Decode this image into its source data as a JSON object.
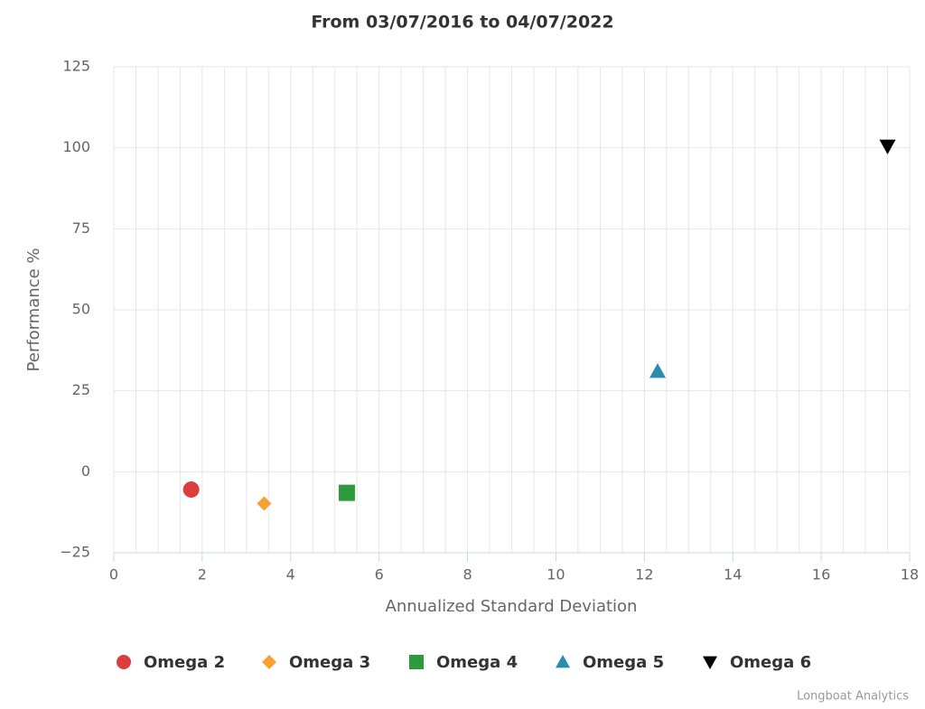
{
  "chart_data": {
    "type": "scatter",
    "title": "From 03/07/2016 to 04/07/2022",
    "xlabel": "Annualized Standard Deviation",
    "ylabel": "Performance %",
    "credit": "Longboat Analytics",
    "xlim": [
      0,
      18
    ],
    "xticks": [
      0,
      2,
      4,
      6,
      8,
      10,
      12,
      14,
      16,
      18
    ],
    "ylim": [
      -25,
      125
    ],
    "yticks": [
      {
        "value": -25,
        "label": "−25"
      },
      0,
      25,
      50,
      75,
      100,
      125
    ],
    "grid": true,
    "x_minor_grid": 4,
    "legend": "bottom",
    "series": [
      {
        "name": "Omega 2",
        "color": "#dc3d3d",
        "marker": "circle",
        "x": [
          1.75
        ],
        "values": [
          -5.5
        ]
      },
      {
        "name": "Omega 3",
        "color": "#f7a035",
        "marker": "diamond",
        "x": [
          3.4
        ],
        "values": [
          -9.8
        ]
      },
      {
        "name": "Omega 4",
        "color": "#2e9a3e",
        "marker": "square",
        "x": [
          5.27
        ],
        "values": [
          -6.5
        ]
      },
      {
        "name": "Omega 5",
        "color": "#2b8cab",
        "marker": "triangle",
        "x": [
          12.3
        ],
        "values": [
          31
        ]
      },
      {
        "name": "Omega 6",
        "color": "#000000",
        "marker": "triangle-down",
        "x": [
          17.5
        ],
        "values": [
          100.5
        ]
      }
    ]
  }
}
